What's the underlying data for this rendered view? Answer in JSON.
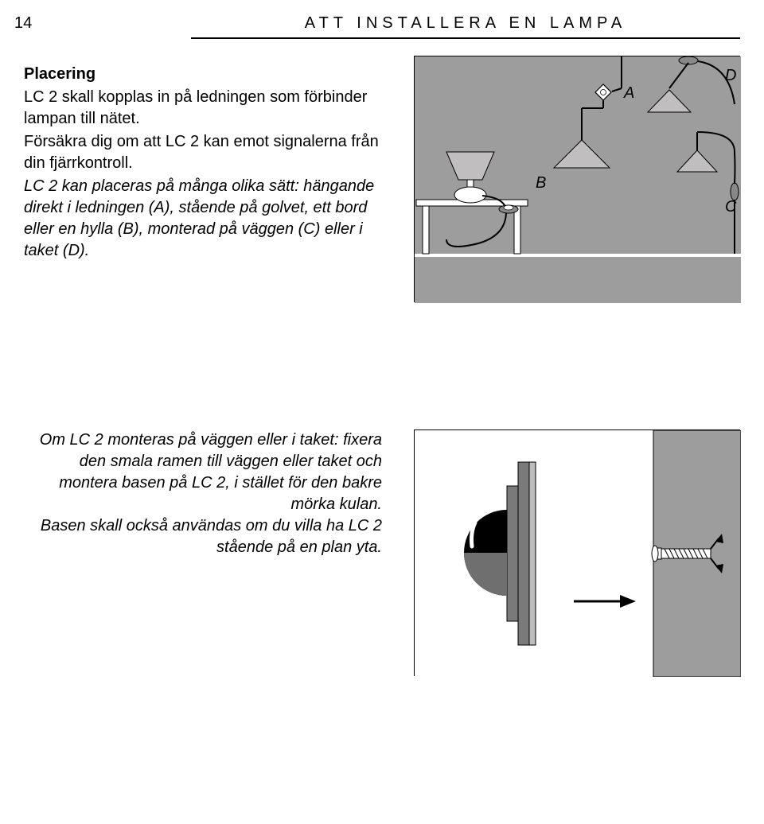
{
  "page_number": "14",
  "header_title": "ATT INSTALLERA EN LAMPA",
  "section": {
    "heading": "Placering",
    "p1": "LC 2 skall kopplas in på ledningen som förbinder lampan till nätet.",
    "p2": "Försäkra dig om att LC 2 kan emot signalerna från din fjärrkontroll.",
    "p3": "LC 2 kan placeras på många olika sätt: hängande direkt i ledningen (A), stående på golvet, ett bord eller en hylla (B), monterad på väggen (C) eller i taket (D)."
  },
  "block2": {
    "text": "Om LC 2 monteras på väggen eller i taket: fixera den smala ramen till väggen eller taket och montera basen på LC 2, i stället för den bakre mörka kulan.\nBasen skall också användas om du villa ha LC 2 stående på en plan yta."
  },
  "illustration1": {
    "labels": {
      "A": "A",
      "B": "B",
      "C": "C",
      "D": "D"
    },
    "bg_color": "#9d9d9d",
    "label_fontsize": 20,
    "label_style": "italic",
    "lamp_fill": "#c0bebe",
    "stroke": "#000000"
  },
  "illustration2": {
    "bg_color": "#ffffff",
    "wall_color": "#9d9d9d",
    "stroke": "#000000"
  }
}
